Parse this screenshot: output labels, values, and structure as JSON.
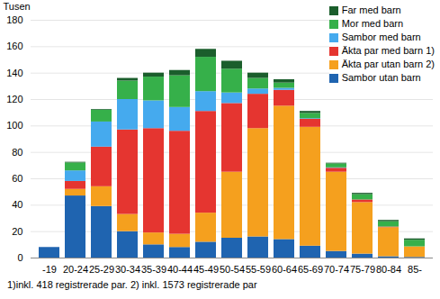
{
  "chart_data": {
    "type": "bar",
    "stacked": true,
    "grid": true,
    "legend": "top-right",
    "y_label": "Tusen",
    "footnote": "1)inkl. 418 registrerade par. 2) inkl. 1573 registrerade par",
    "categories": [
      "-19",
      "20-24",
      "25-29",
      "30-34",
      "35-39",
      "40-44",
      "45-49",
      "50-54",
      "55-59",
      "60-64",
      "65-69",
      "70-74",
      "75-79",
      "80-84",
      "85-"
    ],
    "ylim": [
      0,
      180
    ],
    "yticks": [
      0,
      20,
      40,
      60,
      80,
      100,
      120,
      140,
      160,
      180
    ],
    "series": [
      {
        "name": "Sambor utan barn",
        "color": "#1f64b0",
        "values": [
          8,
          47,
          39,
          20,
          10,
          8,
          12,
          15,
          16,
          14,
          9,
          5,
          3,
          1,
          0.5
        ]
      },
      {
        "name": "Äkta par utan barn 2)",
        "color": "#f5a01e",
        "values": [
          0,
          5,
          15,
          13,
          9,
          10,
          22,
          50,
          82,
          101,
          90,
          60,
          39,
          22,
          8
        ]
      },
      {
        "name": "Äkta par med barn 1)",
        "color": "#e53530",
        "values": [
          0,
          6,
          30,
          64,
          79,
          78,
          77,
          52,
          26,
          12,
          6,
          3,
          2,
          0.5,
          0
        ]
      },
      {
        "name": "Sambor med barn",
        "color": "#45aaee",
        "values": [
          0,
          8,
          19,
          23,
          21,
          18,
          15,
          8,
          4,
          1.5,
          0.5,
          0.3,
          0,
          0,
          0
        ]
      },
      {
        "name": "Mor med barn",
        "color": "#36b04a",
        "values": [
          0,
          6,
          9,
          14,
          18,
          24,
          26,
          18,
          8,
          4,
          4,
          3,
          4,
          4,
          5
        ]
      },
      {
        "name": "Far med barn",
        "color": "#1b5e2c",
        "values": [
          0,
          0.5,
          0.5,
          2,
          3,
          4,
          6,
          6,
          4,
          2.5,
          1.5,
          0.5,
          1,
          1,
          1
        ]
      }
    ]
  }
}
